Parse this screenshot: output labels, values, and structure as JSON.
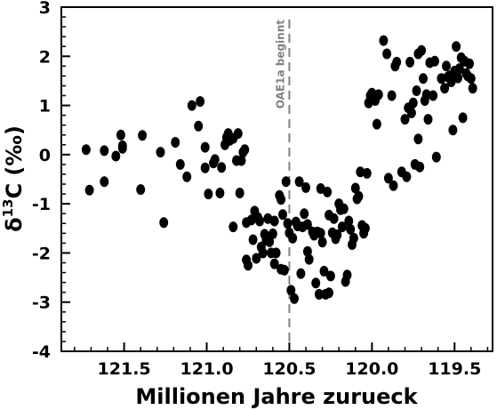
{
  "chart_data": {
    "type": "scatter",
    "xlabel": "Millionen Jahre zurueck",
    "ylabel_main": "δ",
    "ylabel_sup": "13",
    "ylabel_rest": "C (‰)",
    "xlim": [
      121.88,
      119.27
    ],
    "ylim": [
      -4,
      3
    ],
    "x_reversed": true,
    "x_ticks": [
      121.5,
      121.0,
      120.5,
      120.0,
      119.5
    ],
    "x_tick_labels": [
      "121.5",
      "121.0",
      "120.5",
      "120.0",
      "119.5"
    ],
    "y_ticks": [
      -4,
      -3,
      -2,
      -1,
      0,
      1,
      2,
      3
    ],
    "y_tick_labels": [
      "-4",
      "-3",
      "-2",
      "-1",
      "0",
      "1",
      "2",
      "3"
    ],
    "point_color": "#000000",
    "annotation": {
      "text": "OAE1a beginnt",
      "x": 120.5,
      "color": "#808080",
      "line_style": "dashed"
    },
    "points": [
      [
        121.73,
        0.1
      ],
      [
        121.71,
        -0.72
      ],
      [
        121.62,
        0.08
      ],
      [
        121.62,
        -0.55
      ],
      [
        121.55,
        -0.03
      ],
      [
        121.52,
        0.4
      ],
      [
        121.51,
        0.13
      ],
      [
        121.51,
        0.18
      ],
      [
        121.4,
        -0.71
      ],
      [
        121.39,
        0.39
      ],
      [
        121.28,
        0.05
      ],
      [
        121.26,
        -1.38
      ],
      [
        121.19,
        0.25
      ],
      [
        121.16,
        -0.2
      ],
      [
        121.12,
        -0.45
      ],
      [
        121.09,
        1.0
      ],
      [
        121.05,
        0.58
      ],
      [
        121.04,
        1.08
      ],
      [
        121.01,
        -0.27
      ],
      [
        121.01,
        0.15
      ],
      [
        120.99,
        -0.8
      ],
      [
        120.96,
        -0.17
      ],
      [
        120.95,
        -0.1
      ],
      [
        120.92,
        -0.78
      ],
      [
        120.91,
        -0.26
      ],
      [
        120.89,
        0.2
      ],
      [
        120.88,
        0.35
      ],
      [
        120.87,
        0.43
      ],
      [
        120.86,
        0.29
      ],
      [
        120.84,
        0.33
      ],
      [
        120.82,
        -0.12
      ],
      [
        120.81,
        0.43
      ],
      [
        120.8,
        -0.78
      ],
      [
        120.79,
        -0.12
      ],
      [
        120.78,
        0.05
      ],
      [
        120.77,
        0.1
      ],
      [
        120.84,
        -1.47
      ],
      [
        120.76,
        -1.38
      ],
      [
        120.76,
        -2.14
      ],
      [
        120.75,
        -2.25
      ],
      [
        120.73,
        -1.33
      ],
      [
        120.72,
        -1.73
      ],
      [
        120.71,
        -1.15
      ],
      [
        120.7,
        -2.11
      ],
      [
        120.69,
        -1.28
      ],
      [
        120.68,
        -1.35
      ],
      [
        120.67,
        -1.88
      ],
      [
        120.66,
        -2.0
      ],
      [
        120.65,
        -1.62
      ],
      [
        120.64,
        -1.74
      ],
      [
        120.63,
        -1.3
      ],
      [
        120.62,
        -1.77
      ],
      [
        120.61,
        -2.0
      ],
      [
        120.6,
        -1.61
      ],
      [
        120.59,
        -1.35
      ],
      [
        120.59,
        -2.22
      ],
      [
        120.58,
        -2.0
      ],
      [
        120.56,
        -0.83
      ],
      [
        120.55,
        -2.33
      ],
      [
        120.55,
        -0.91
      ],
      [
        120.54,
        -1.22
      ],
      [
        120.53,
        -2.35
      ],
      [
        120.52,
        -0.55
      ],
      [
        120.51,
        -1.4
      ],
      [
        120.5,
        -1.59
      ],
      [
        120.49,
        -2.76
      ],
      [
        120.48,
        -1.7
      ],
      [
        120.47,
        -2.93
      ],
      [
        120.46,
        -1.37
      ],
      [
        120.45,
        -1.45
      ],
      [
        120.44,
        -0.55
      ],
      [
        120.43,
        -2.42
      ],
      [
        120.42,
        -1.47
      ],
      [
        120.41,
        -1.2
      ],
      [
        120.4,
        -0.67
      ],
      [
        120.39,
        -1.97
      ],
      [
        120.39,
        -1.42
      ],
      [
        120.38,
        -2.13
      ],
      [
        120.36,
        -1.57
      ],
      [
        120.35,
        -1.64
      ],
      [
        120.34,
        -2.61
      ],
      [
        120.33,
        -1.57
      ],
      [
        120.32,
        -2.84
      ],
      [
        120.31,
        -0.69
      ],
      [
        120.31,
        -1.6
      ],
      [
        120.3,
        -1.78
      ],
      [
        120.29,
        -2.37
      ],
      [
        120.28,
        -2.84
      ],
      [
        120.27,
        -0.76
      ],
      [
        120.26,
        -1.23
      ],
      [
        120.26,
        -2.81
      ],
      [
        120.25,
        -2.47
      ],
      [
        120.24,
        -1.59
      ],
      [
        120.23,
        -1.3
      ],
      [
        120.22,
        -1.71
      ],
      [
        120.21,
        -1.63
      ],
      [
        120.2,
        -1.0
      ],
      [
        120.19,
        -1.12
      ],
      [
        120.18,
        -1.47
      ],
      [
        120.17,
        -1.1
      ],
      [
        120.16,
        -2.58
      ],
      [
        120.15,
        -2.45
      ],
      [
        120.14,
        -1.35
      ],
      [
        120.13,
        -1.52
      ],
      [
        120.12,
        -1.83
      ],
      [
        120.11,
        -1.7
      ],
      [
        120.1,
        -0.68
      ],
      [
        120.09,
        -0.9
      ],
      [
        120.08,
        -0.85
      ],
      [
        120.07,
        -0.35
      ],
      [
        120.06,
        -1.44
      ],
      [
        120.05,
        -1.6
      ],
      [
        120.04,
        -1.5
      ],
      [
        120.03,
        -0.38
      ],
      [
        120.02,
        1.05
      ],
      [
        120.01,
        1.2
      ],
      [
        120.0,
        1.25
      ],
      [
        119.98,
        1.1
      ],
      [
        119.97,
        0.62
      ],
      [
        119.96,
        1.22
      ],
      [
        119.93,
        2.32
      ],
      [
        119.91,
        2.05
      ],
      [
        119.9,
        -0.48
      ],
      [
        119.88,
        1.2
      ],
      [
        119.87,
        -0.63
      ],
      [
        119.86,
        1.8
      ],
      [
        119.85,
        1.88
      ],
      [
        119.82,
        -0.35
      ],
      [
        119.8,
        0.72
      ],
      [
        119.79,
        -0.45
      ],
      [
        119.78,
        0.95
      ],
      [
        119.77,
        1.88
      ],
      [
        119.76,
        0.85
      ],
      [
        119.75,
        1.05
      ],
      [
        119.74,
        -0.2
      ],
      [
        119.73,
        1.3
      ],
      [
        119.72,
        2.05
      ],
      [
        119.72,
        0.32
      ],
      [
        119.71,
        -0.25
      ],
      [
        119.7,
        2.12
      ],
      [
        119.69,
        1.55
      ],
      [
        119.68,
        1.1
      ],
      [
        119.67,
        1.22
      ],
      [
        119.66,
        0.72
      ],
      [
        119.65,
        1.87
      ],
      [
        119.63,
        1.2
      ],
      [
        119.62,
        1.9
      ],
      [
        119.61,
        -0.05
      ],
      [
        119.58,
        1.55
      ],
      [
        119.56,
        1.35
      ],
      [
        119.55,
        1.8
      ],
      [
        119.54,
        1.58
      ],
      [
        119.53,
        1.6
      ],
      [
        119.52,
        1.48
      ],
      [
        119.51,
        0.5
      ],
      [
        119.5,
        1.7
      ],
      [
        119.49,
        2.2
      ],
      [
        119.48,
        1.56
      ],
      [
        119.47,
        1.75
      ],
      [
        119.46,
        1.97
      ],
      [
        119.45,
        0.75
      ],
      [
        119.44,
        1.9
      ],
      [
        119.43,
        1.65
      ],
      [
        119.42,
        1.6
      ],
      [
        119.41,
        1.85
      ],
      [
        119.4,
        1.55
      ],
      [
        119.39,
        1.35
      ]
    ]
  }
}
